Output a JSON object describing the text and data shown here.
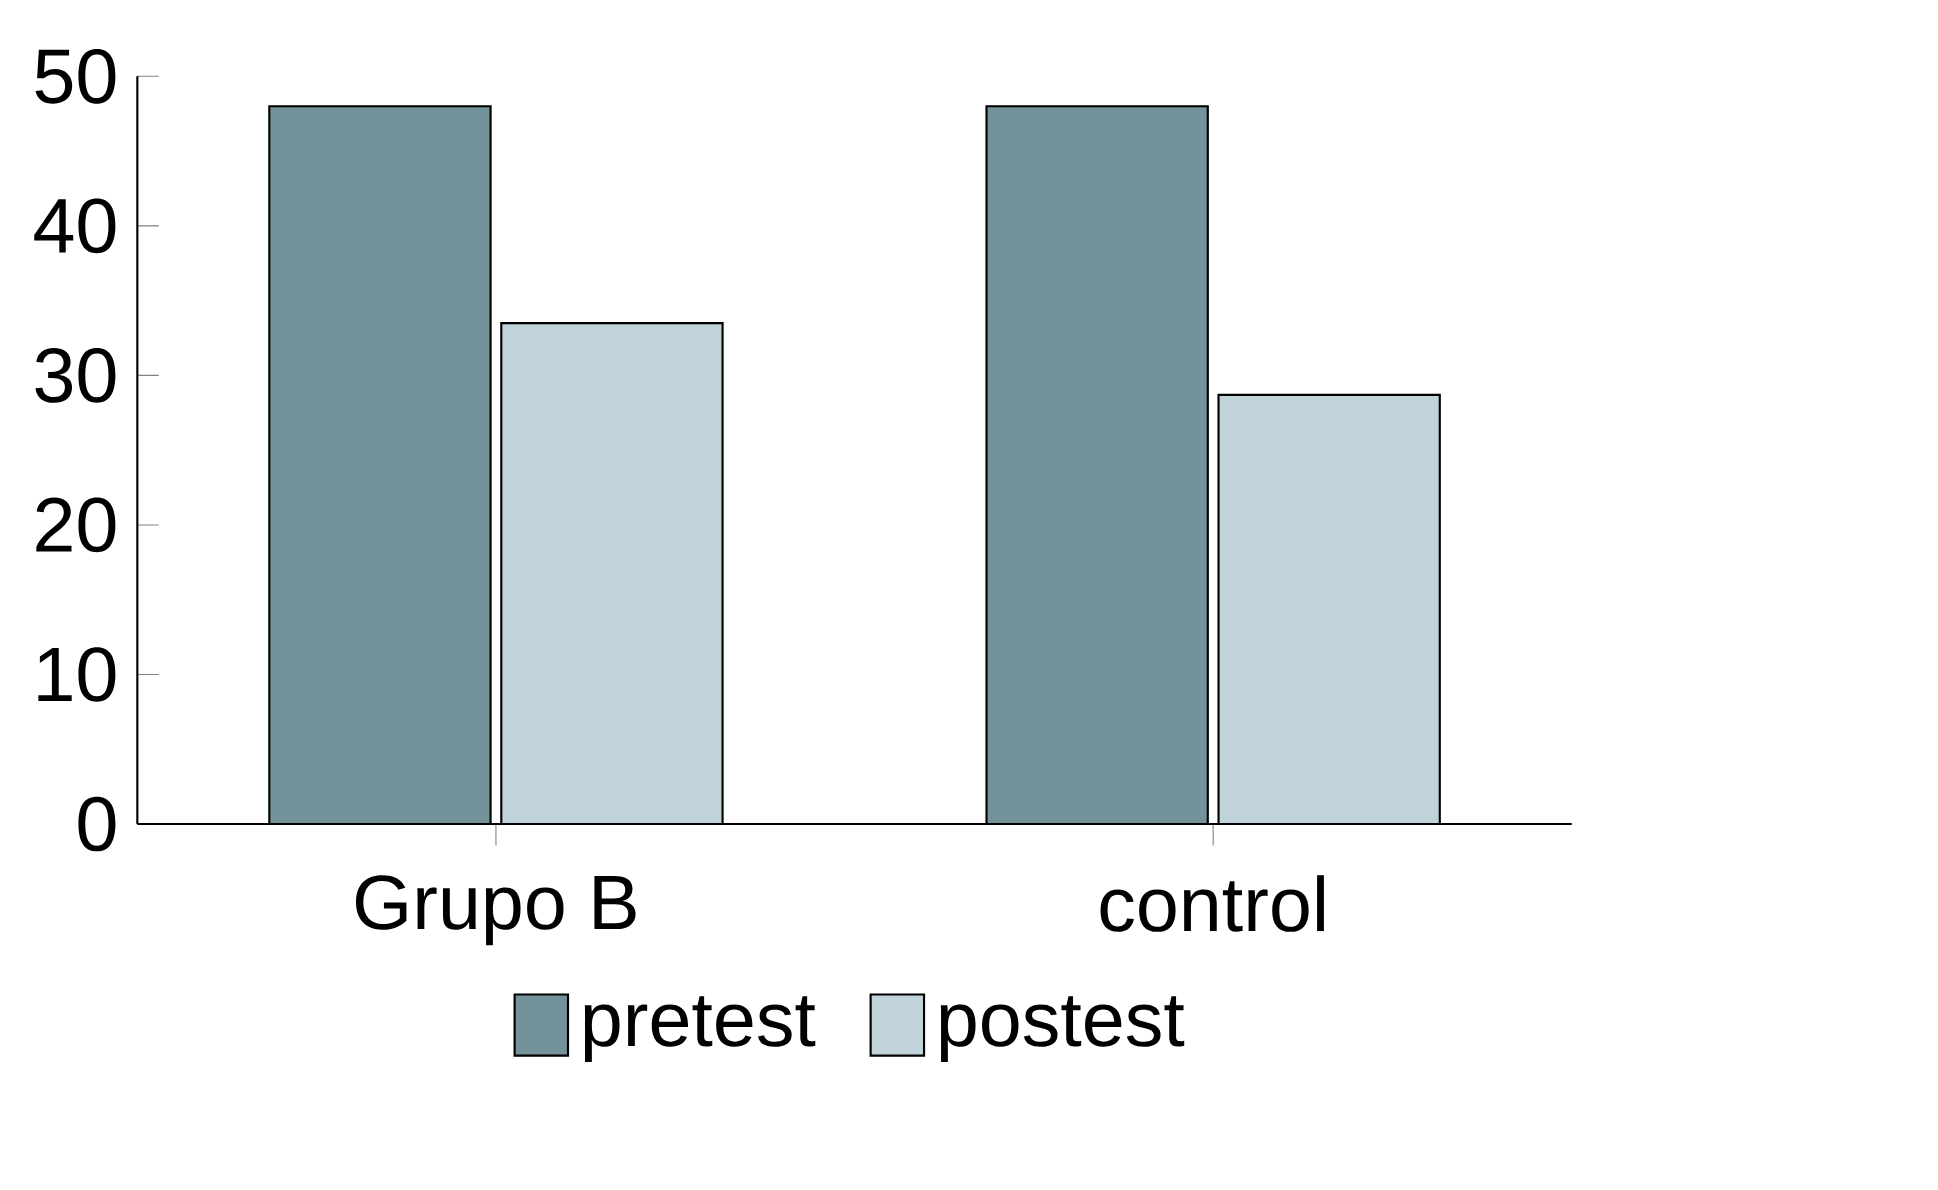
{
  "chart_data": {
    "type": "bar",
    "categories": [
      "Grupo B",
      "control"
    ],
    "series": [
      {
        "name": "pretest",
        "color": "#73929a",
        "values": [
          48,
          48
        ]
      },
      {
        "name": "postest",
        "color": "#c0d2da",
        "values": [
          33.5,
          28.7
        ]
      }
    ],
    "ylim": [
      0,
      50
    ],
    "yticks": [
      0,
      10,
      20,
      30,
      40,
      50
    ],
    "grid": false,
    "legend": "bottom"
  }
}
